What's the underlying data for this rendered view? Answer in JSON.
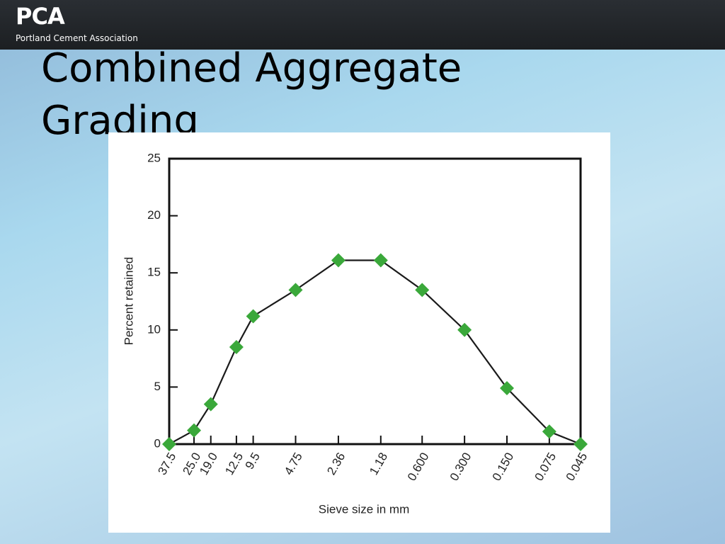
{
  "header": {
    "logo": "PCA",
    "organization": "Portland Cement Association"
  },
  "slide_title": "Combined Aggregate Grading",
  "chart_data": {
    "type": "line",
    "x_label": "Sieve size in mm",
    "y_label": "Percent retained",
    "x": [
      37.5,
      25,
      19,
      12.5,
      9.5,
      4.75,
      2.36,
      1.18,
      0.6,
      0.3,
      0.15,
      0.075,
      0.045
    ],
    "values": [
      0,
      1.2,
      3.5,
      8.5,
      11.2,
      13.5,
      16.1,
      16.1,
      13.5,
      10,
      4.9,
      1.1,
      0
    ],
    "line_color": "#1a1a1a",
    "marker_color": "#3aa83a",
    "xscale": "log",
    "xlim": [
      37.5,
      0.045
    ],
    "xticks": [
      37.5,
      {
        "value": 25,
        "label": "25.0"
      },
      {
        "value": 19,
        "label": "19.0"
      },
      12.5,
      9.5,
      4.75,
      2.36,
      1.18,
      {
        "value": 0.6,
        "label": "0.600"
      },
      {
        "value": 0.3,
        "label": "0.300"
      },
      {
        "value": 0.15,
        "label": "0.150"
      },
      0.075,
      0.045
    ],
    "ylim": [
      0,
      25
    ],
    "yticks": [
      0,
      5,
      10,
      15,
      20,
      25
    ]
  }
}
